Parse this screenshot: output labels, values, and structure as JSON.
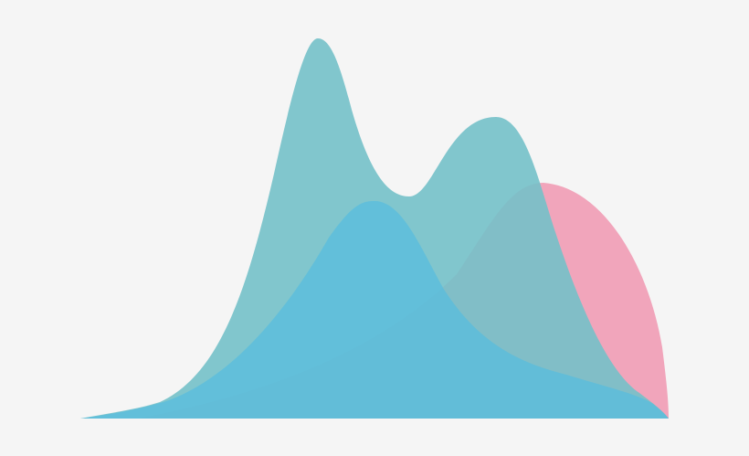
{
  "background": "#f5f5f5",
  "shapes": {
    "pink": {
      "color": "#f1a5bb"
    },
    "teal": {
      "color": "#74c1c9"
    },
    "blue": {
      "color": "#56bcdf"
    }
  }
}
